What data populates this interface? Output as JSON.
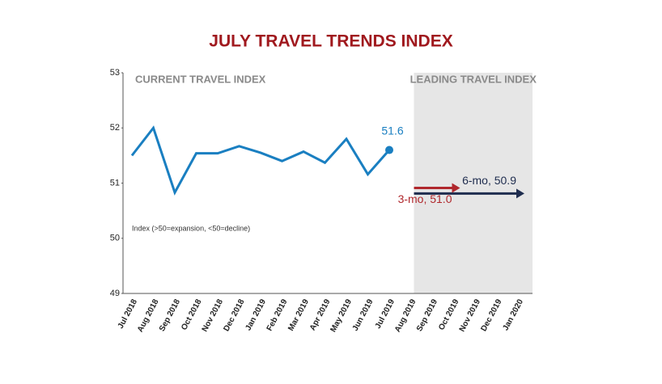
{
  "chart_data": {
    "type": "line",
    "title": "JULY TRAVEL TRENDS INDEX",
    "current_label": "CURRENT TRAVEL INDEX",
    "leading_label": "LEADING TRAVEL INDEX",
    "note": "Index (>50=expansion, <50=decline)",
    "categories": [
      "Jul 2018",
      "Aug 2018",
      "Sep 2018",
      "Oct 2018",
      "Nov 2018",
      "Dec 2018",
      "Jan 2019",
      "Feb 2019",
      "Mar 2019",
      "Apr 2019",
      "May 2019",
      "Jun 2019",
      "Jul 2019",
      "Aug 2019",
      "Sep 2019",
      "Oct 2019",
      "Nov 2019",
      "Dec 2019",
      "Jan 2020"
    ],
    "series": [
      {
        "name": "CURRENT TRAVEL INDEX",
        "color": "#1a7fc1",
        "values": [
          51.5,
          52.0,
          50.83,
          51.54,
          51.54,
          51.67,
          51.55,
          51.4,
          51.57,
          51.37,
          51.8,
          51.16,
          51.6,
          null,
          null,
          null,
          null,
          null,
          null
        ]
      }
    ],
    "forecasts": [
      {
        "label": "6-mo, 50.9",
        "value": 50.9,
        "end": "Jan 2020",
        "color": "#1f2d4f"
      },
      {
        "label": "3-mo, 51.0",
        "value": 51.0,
        "end": "Oct 2019",
        "color": "#b0282d"
      }
    ],
    "ylim": [
      49,
      53
    ],
    "yticks": [
      49,
      50,
      51,
      52,
      53
    ]
  }
}
